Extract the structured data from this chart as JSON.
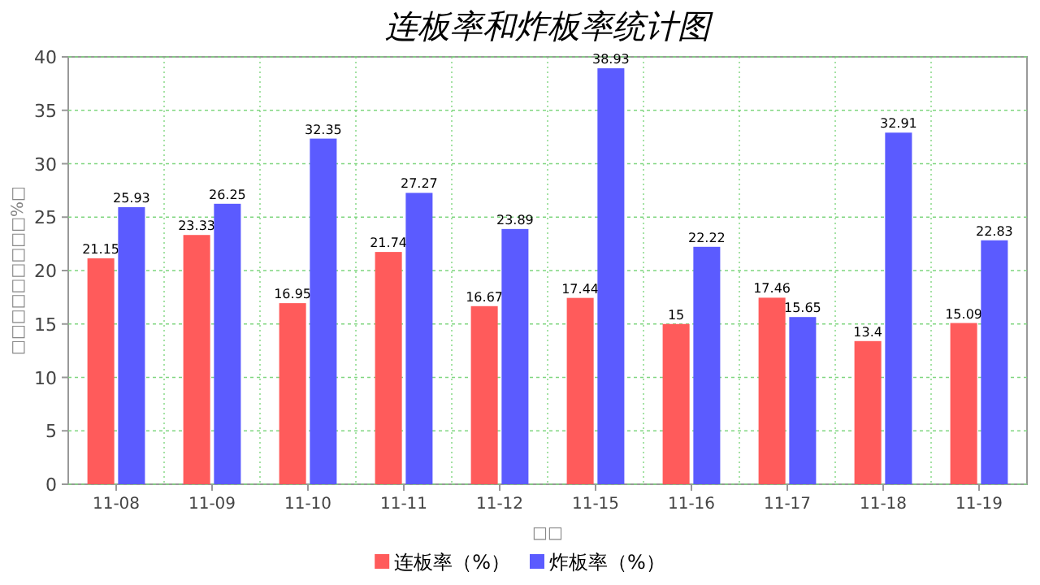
{
  "chart_data": {
    "type": "bar",
    "title": "连板率和炸板率统计图",
    "xlabel": "□□",
    "ylabel": "□□□□□□□□□%□",
    "categories": [
      "11-08",
      "11-09",
      "11-10",
      "11-11",
      "11-12",
      "11-15",
      "11-16",
      "11-17",
      "11-18",
      "11-19"
    ],
    "series": [
      {
        "name": "连板率（%）",
        "color": "#ff5b5b",
        "values": [
          21.15,
          23.33,
          16.95,
          21.74,
          16.67,
          17.44,
          15,
          17.46,
          13.4,
          15.09
        ]
      },
      {
        "name": "炸板率（%）",
        "color": "#5b5bff",
        "values": [
          25.93,
          26.25,
          32.35,
          27.27,
          23.89,
          38.93,
          22.22,
          15.65,
          32.91,
          22.83
        ]
      }
    ],
    "ylim": [
      0,
      40
    ],
    "yticks": [
      0,
      5,
      10,
      15,
      20,
      25,
      30,
      35,
      40
    ],
    "grid": true,
    "legend": "bottom",
    "data_labels": true
  }
}
